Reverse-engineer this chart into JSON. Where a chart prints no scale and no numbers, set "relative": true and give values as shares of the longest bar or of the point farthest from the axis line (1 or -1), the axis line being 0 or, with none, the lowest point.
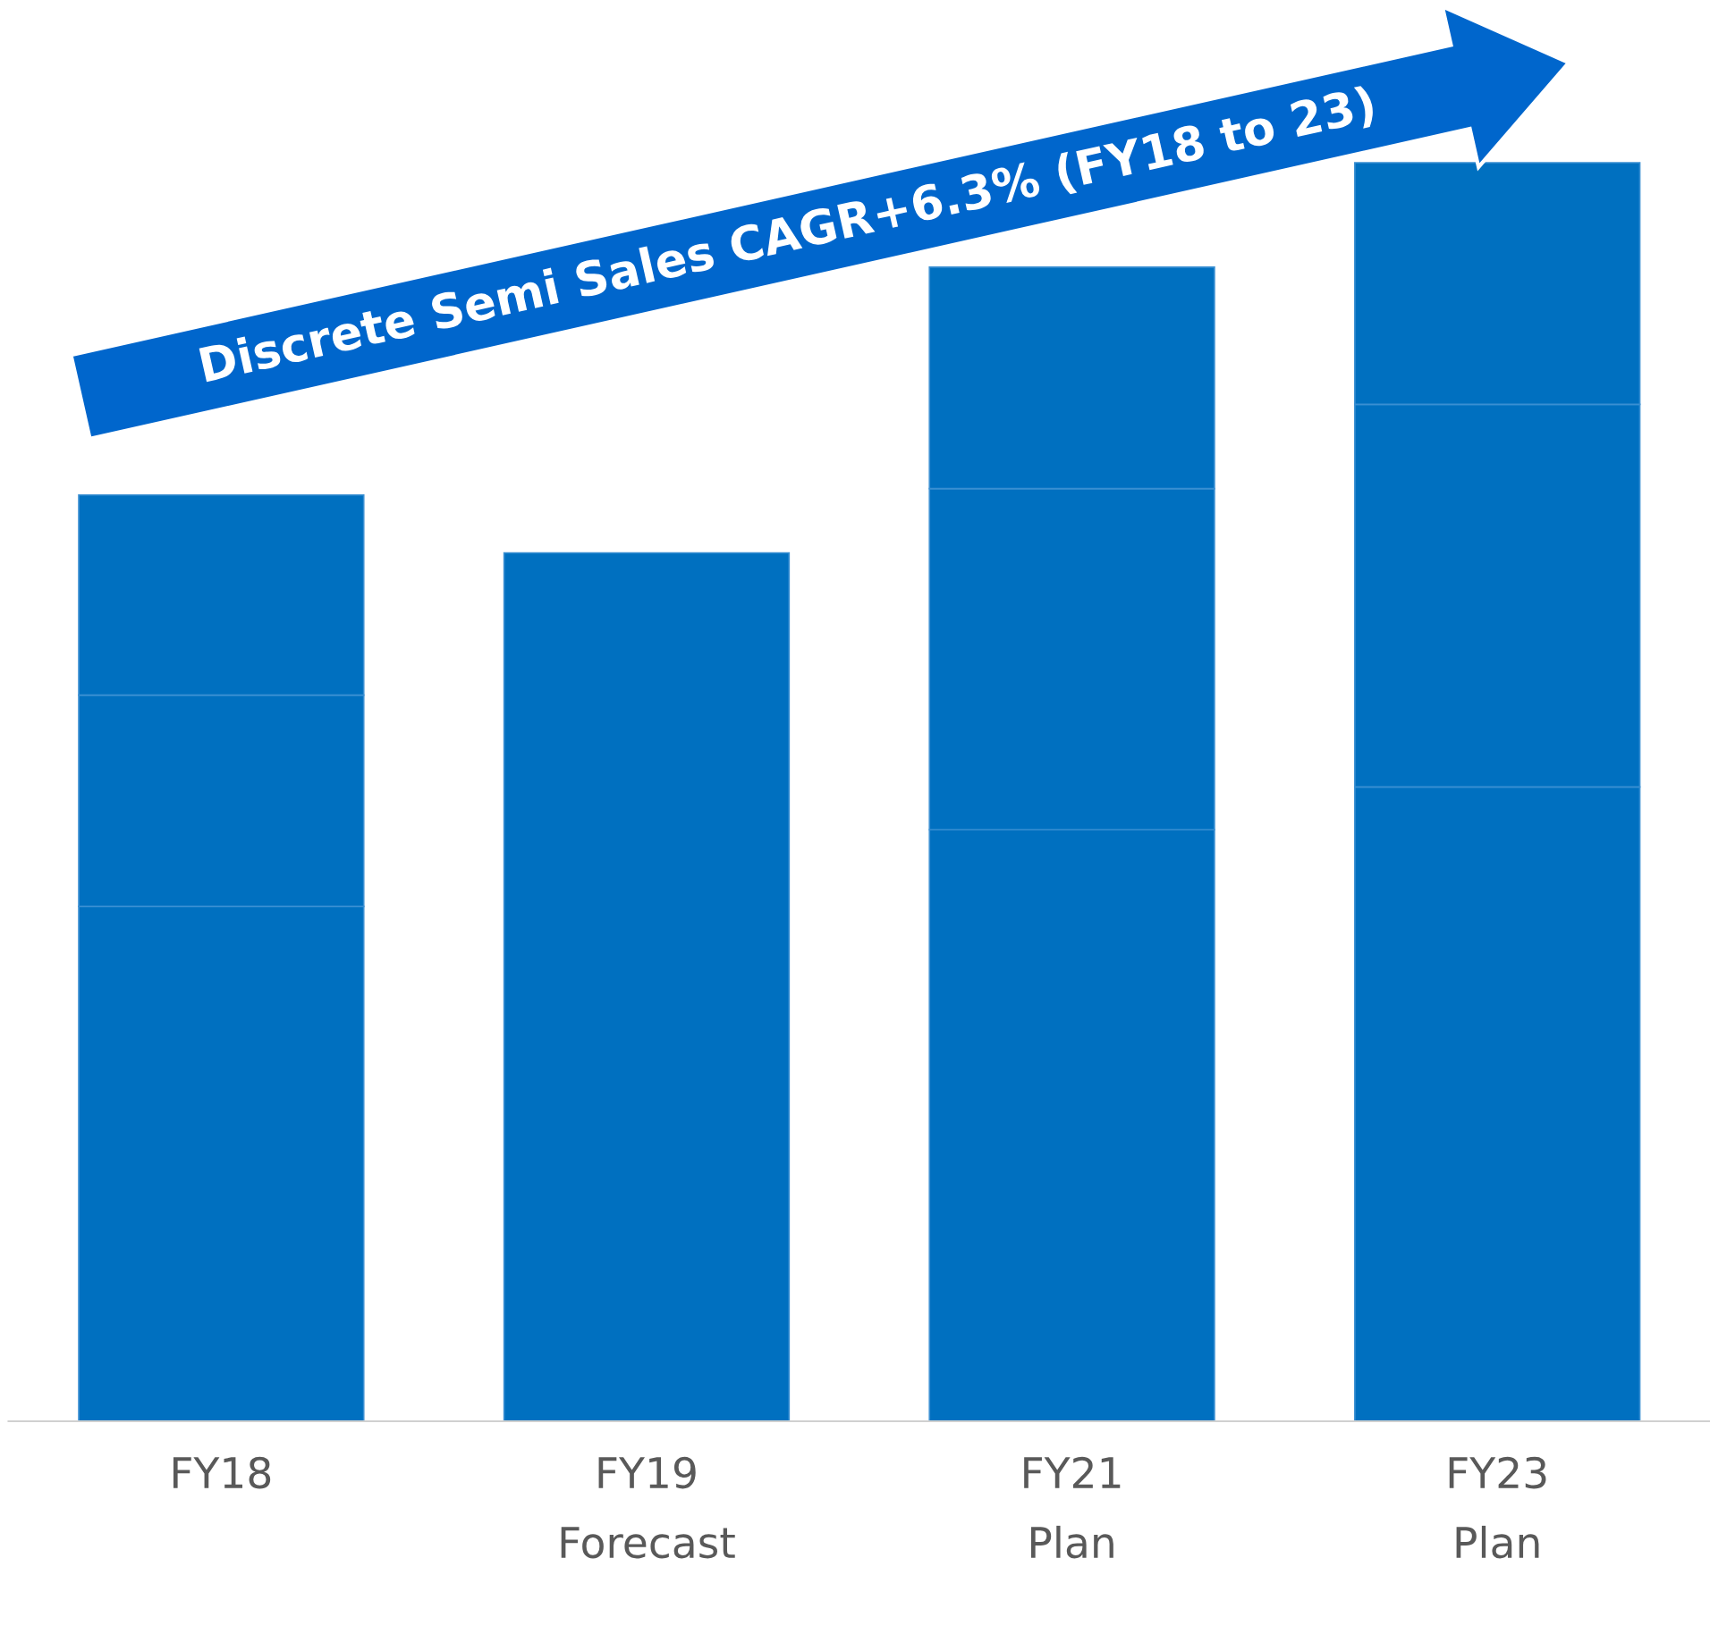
{
  "chart_data": {
    "type": "bar",
    "stacked": true,
    "relative": true,
    "categories": [
      "FY18",
      "FY19\nForecast",
      "FY21\nPlan",
      "FY23\nPlan"
    ],
    "series": [
      {
        "color": "#0070c0",
        "values": [
          0.409,
          0.69,
          0.47,
          0.504
        ]
      },
      {
        "color": "#0070c0",
        "values": [
          0.168,
          null,
          0.271,
          0.304
        ]
      },
      {
        "color": "#0070c0",
        "values": [
          0.159,
          null,
          0.176,
          0.192
        ]
      }
    ],
    "annotations": [
      "Discrete Semi Sales CAGR+6.3% (FY18 to 23)"
    ],
    "grid": false,
    "legend": false
  }
}
